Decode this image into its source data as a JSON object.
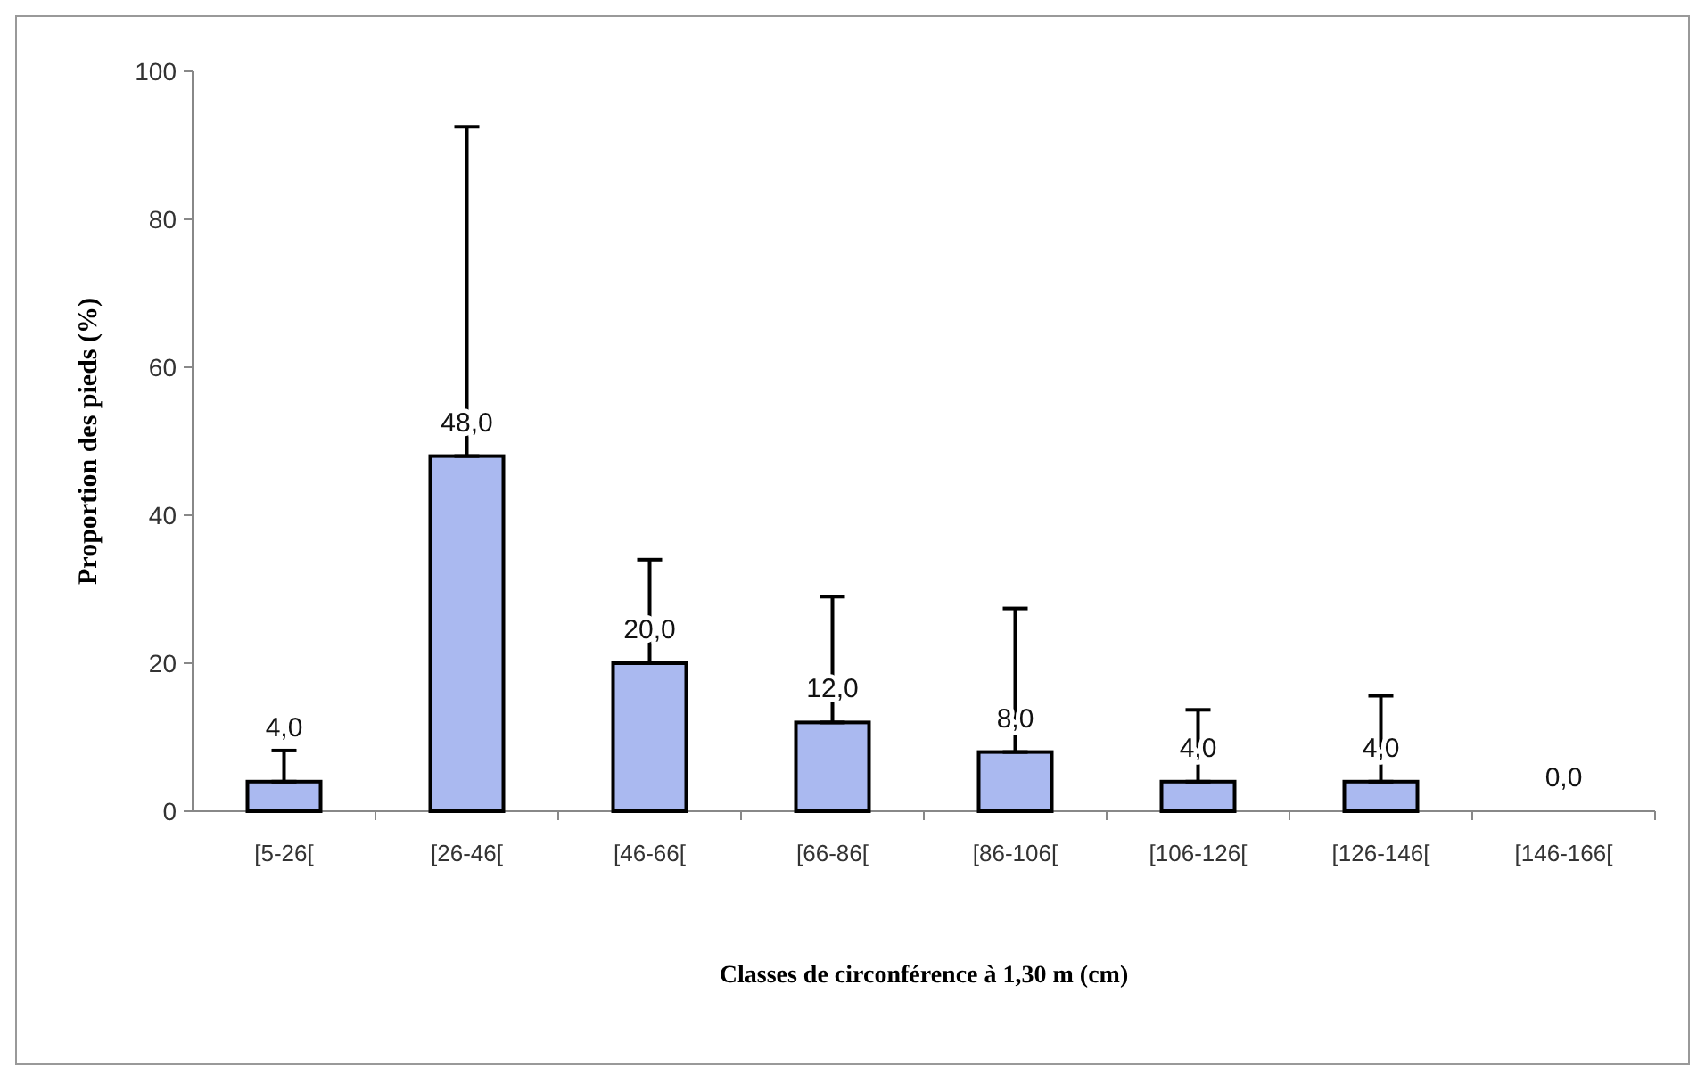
{
  "chart_data": {
    "type": "bar",
    "xlabel": "Classes de circonférence à 1,30 m (cm)",
    "ylabel": "Proportion des pieds (%)",
    "categories": [
      "[5-26[",
      "[26-46[",
      "[46-66[",
      "[66-86[",
      "[86-106[",
      "[106-126[",
      "[126-146[",
      "[146-166["
    ],
    "values": [
      4,
      48,
      20,
      12,
      8,
      4,
      4,
      0
    ],
    "errors": [
      [
        4,
        8.2
      ],
      [
        48,
        92.5
      ],
      [
        20,
        34
      ],
      [
        12,
        29
      ],
      [
        8,
        27.4
      ],
      [
        4,
        13.7
      ],
      [
        4,
        15.6
      ],
      null
    ],
    "value_labels": [
      "4,0",
      "48,0",
      "20,0",
      "12,0",
      "8,0",
      "4,0",
      "4,0",
      "0,0"
    ],
    "color": "#aab9f0",
    "ylim": [
      0,
      100
    ],
    "yticks": [
      0,
      20,
      40,
      60,
      80,
      100
    ],
    "grid": false
  }
}
